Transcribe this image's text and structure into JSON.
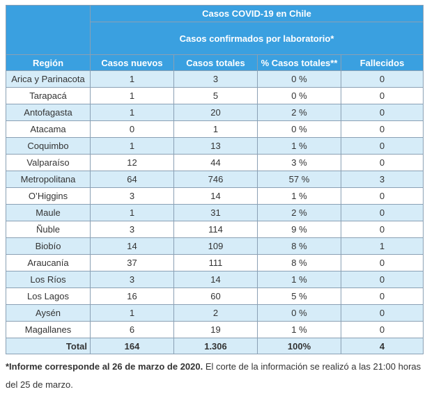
{
  "table": {
    "title": "Casos COVID-19 en Chile",
    "subtitle": "Casos confirmados por laboratorio*",
    "headers": [
      "Región",
      "Casos nuevos",
      "Casos totales",
      "% Casos totales**",
      "Fallecidos"
    ],
    "rows": [
      [
        "Arica y Parinacota",
        "1",
        "3",
        "0 %",
        "0"
      ],
      [
        "Tarapacá",
        "1",
        "5",
        "0 %",
        "0"
      ],
      [
        "Antofagasta",
        "1",
        "20",
        "2 %",
        "0"
      ],
      [
        "Atacama",
        "0",
        "1",
        "0 %",
        "0"
      ],
      [
        "Coquimbo",
        "1",
        "13",
        "1 %",
        "0"
      ],
      [
        "Valparaíso",
        "12",
        "44",
        "3 %",
        "0"
      ],
      [
        "Metropolitana",
        "64",
        "746",
        "57 %",
        "3"
      ],
      [
        "O’Higgins",
        "3",
        "14",
        "1 %",
        "0"
      ],
      [
        "Maule",
        "1",
        "31",
        "2 %",
        "0"
      ],
      [
        "Ñuble",
        "3",
        "114",
        "9 %",
        "0"
      ],
      [
        "Biobío",
        "14",
        "109",
        "8 %",
        "1"
      ],
      [
        "Araucanía",
        "37",
        "111",
        "8 %",
        "0"
      ],
      [
        "Los Ríos",
        "3",
        "14",
        "1 %",
        "0"
      ],
      [
        "Los Lagos",
        "16",
        "60",
        "5 %",
        "0"
      ],
      [
        "Aysén",
        "1",
        "2",
        "0 %",
        "0"
      ],
      [
        "Magallanes",
        "6",
        "19",
        "1 %",
        "0"
      ]
    ],
    "total": [
      "Total",
      "164",
      "1.306",
      "100%",
      "4"
    ]
  },
  "footnote": {
    "bold": "*Informe corresponde al 26 de marzo de 2020.",
    "rest": " El corte de la información se realizó a las 21:00 horas del 25 de marzo."
  }
}
